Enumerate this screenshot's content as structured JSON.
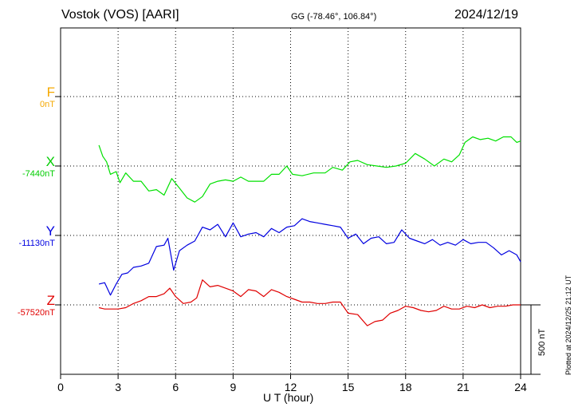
{
  "header": {
    "station": "Vostok (VOS)  [AARI]",
    "coords": "GG (-78.46°, 106.84°)",
    "date": "2024/12/19"
  },
  "footer": {
    "plotted": "Plotted at 2024/12/25 21:12 UT",
    "scale": "500 nT"
  },
  "chart_data": {
    "type": "line",
    "xlabel": "U T (hour)",
    "xlim": [
      0,
      24
    ],
    "xticks": [
      0,
      3,
      6,
      9,
      12,
      15,
      18,
      21,
      24
    ],
    "offset_scale": "500 nT",
    "components": [
      {
        "label": "F",
        "baseline": "0nT",
        "color": "#f5a800",
        "points": []
      },
      {
        "label": "X",
        "baseline": "-7440nT",
        "color": "#00e000",
        "points": [
          [
            2.0,
            150
          ],
          [
            2.2,
            70
          ],
          [
            2.4,
            30
          ],
          [
            2.6,
            -60
          ],
          [
            2.9,
            -40
          ],
          [
            3.1,
            -120
          ],
          [
            3.4,
            -50
          ],
          [
            3.8,
            -110
          ],
          [
            4.2,
            -110
          ],
          [
            4.6,
            -180
          ],
          [
            5.0,
            -170
          ],
          [
            5.4,
            -210
          ],
          [
            5.8,
            -90
          ],
          [
            6.2,
            -160
          ],
          [
            6.6,
            -230
          ],
          [
            7.0,
            -260
          ],
          [
            7.4,
            -220
          ],
          [
            7.8,
            -130
          ],
          [
            8.2,
            -110
          ],
          [
            8.6,
            -100
          ],
          [
            9.0,
            -110
          ],
          [
            9.4,
            -80
          ],
          [
            9.8,
            -110
          ],
          [
            10.2,
            -110
          ],
          [
            10.6,
            -110
          ],
          [
            11.0,
            -60
          ],
          [
            11.4,
            -60
          ],
          [
            11.8,
            0
          ],
          [
            12.1,
            -60
          ],
          [
            12.6,
            -70
          ],
          [
            13.2,
            -50
          ],
          [
            13.8,
            -50
          ],
          [
            14.2,
            -10
          ],
          [
            14.7,
            -30
          ],
          [
            15.1,
            30
          ],
          [
            15.5,
            40
          ],
          [
            16.0,
            10
          ],
          [
            16.5,
            0
          ],
          [
            17.0,
            -10
          ],
          [
            17.5,
            0
          ],
          [
            18.0,
            20
          ],
          [
            18.5,
            90
          ],
          [
            19.0,
            50
          ],
          [
            19.5,
            0
          ],
          [
            20.0,
            50
          ],
          [
            20.4,
            30
          ],
          [
            20.8,
            80
          ],
          [
            21.1,
            170
          ],
          [
            21.5,
            210
          ],
          [
            21.9,
            190
          ],
          [
            22.3,
            200
          ],
          [
            22.7,
            180
          ],
          [
            23.1,
            210
          ],
          [
            23.5,
            210
          ],
          [
            23.8,
            170
          ],
          [
            24.0,
            180
          ]
        ]
      },
      {
        "label": "Y",
        "baseline": "-11130nT",
        "color": "#0000e0",
        "points": [
          [
            2.0,
            -350
          ],
          [
            2.3,
            -340
          ],
          [
            2.6,
            -430
          ],
          [
            2.9,
            -350
          ],
          [
            3.2,
            -280
          ],
          [
            3.5,
            -270
          ],
          [
            3.8,
            -230
          ],
          [
            4.2,
            -220
          ],
          [
            4.6,
            -200
          ],
          [
            5.0,
            -80
          ],
          [
            5.4,
            -70
          ],
          [
            5.6,
            -20
          ],
          [
            5.9,
            -250
          ],
          [
            6.2,
            -110
          ],
          [
            6.6,
            -70
          ],
          [
            7.0,
            -40
          ],
          [
            7.4,
            60
          ],
          [
            7.8,
            40
          ],
          [
            8.2,
            80
          ],
          [
            8.6,
            -10
          ],
          [
            9.0,
            90
          ],
          [
            9.4,
            -10
          ],
          [
            9.8,
            10
          ],
          [
            10.2,
            20
          ],
          [
            10.6,
            -10
          ],
          [
            11.0,
            50
          ],
          [
            11.4,
            20
          ],
          [
            11.8,
            60
          ],
          [
            12.2,
            70
          ],
          [
            12.6,
            120
          ],
          [
            13.0,
            100
          ],
          [
            13.4,
            90
          ],
          [
            13.8,
            80
          ],
          [
            14.2,
            70
          ],
          [
            14.6,
            60
          ],
          [
            15.0,
            -20
          ],
          [
            15.4,
            10
          ],
          [
            15.8,
            -60
          ],
          [
            16.2,
            -20
          ],
          [
            16.6,
            -10
          ],
          [
            17.0,
            -60
          ],
          [
            17.4,
            -50
          ],
          [
            17.8,
            40
          ],
          [
            18.2,
            -20
          ],
          [
            18.6,
            -40
          ],
          [
            19.0,
            -60
          ],
          [
            19.4,
            -30
          ],
          [
            19.8,
            -70
          ],
          [
            20.2,
            -50
          ],
          [
            20.6,
            -70
          ],
          [
            21.0,
            -30
          ],
          [
            21.4,
            -60
          ],
          [
            21.8,
            -50
          ],
          [
            22.2,
            -50
          ],
          [
            22.6,
            -90
          ],
          [
            23.0,
            -140
          ],
          [
            23.4,
            -110
          ],
          [
            23.8,
            -140
          ],
          [
            24.0,
            -190
          ]
        ]
      },
      {
        "label": "Z",
        "baseline": "-57520nT",
        "color": "#e00000",
        "points": [
          [
            2.0,
            -20
          ],
          [
            2.3,
            -30
          ],
          [
            2.6,
            -30
          ],
          [
            3.0,
            -30
          ],
          [
            3.4,
            -20
          ],
          [
            3.8,
            10
          ],
          [
            4.2,
            30
          ],
          [
            4.6,
            60
          ],
          [
            5.0,
            60
          ],
          [
            5.4,
            80
          ],
          [
            5.7,
            120
          ],
          [
            6.0,
            60
          ],
          [
            6.4,
            10
          ],
          [
            6.8,
            20
          ],
          [
            7.1,
            50
          ],
          [
            7.4,
            180
          ],
          [
            7.8,
            130
          ],
          [
            8.2,
            140
          ],
          [
            8.6,
            120
          ],
          [
            9.0,
            100
          ],
          [
            9.4,
            60
          ],
          [
            9.8,
            110
          ],
          [
            10.2,
            100
          ],
          [
            10.6,
            60
          ],
          [
            11.0,
            110
          ],
          [
            11.4,
            90
          ],
          [
            11.8,
            60
          ],
          [
            12.2,
            40
          ],
          [
            12.6,
            20
          ],
          [
            13.0,
            20
          ],
          [
            13.4,
            10
          ],
          [
            13.8,
            10
          ],
          [
            14.2,
            20
          ],
          [
            14.6,
            20
          ],
          [
            15.0,
            -60
          ],
          [
            15.5,
            -70
          ],
          [
            16.0,
            -150
          ],
          [
            16.4,
            -120
          ],
          [
            16.8,
            -110
          ],
          [
            17.2,
            -60
          ],
          [
            17.6,
            -40
          ],
          [
            18.0,
            -10
          ],
          [
            18.4,
            -20
          ],
          [
            18.8,
            -40
          ],
          [
            19.2,
            -50
          ],
          [
            19.6,
            -40
          ],
          [
            20.0,
            -10
          ],
          [
            20.4,
            -30
          ],
          [
            20.8,
            -30
          ],
          [
            21.2,
            -10
          ],
          [
            21.6,
            -20
          ],
          [
            22.0,
            0
          ],
          [
            22.4,
            -20
          ],
          [
            22.8,
            -10
          ],
          [
            23.2,
            -10
          ],
          [
            23.6,
            0
          ],
          [
            24.0,
            0
          ]
        ]
      }
    ]
  }
}
